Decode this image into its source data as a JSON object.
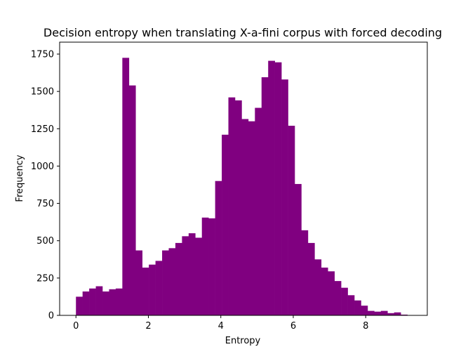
{
  "chart_data": {
    "type": "bar",
    "title": "Decision entropy when translating X-a-fini corpus with forced decoding",
    "xlabel": "Entropy",
    "ylabel": "Frequency",
    "xlim": [
      -0.45,
      9.7
    ],
    "ylim": [
      0,
      1830
    ],
    "x_ticks": [
      0,
      2,
      4,
      6,
      8
    ],
    "x_tick_labels": [
      "0",
      "2",
      "4",
      "6",
      "8"
    ],
    "y_ticks": [
      0,
      250,
      500,
      750,
      1000,
      1250,
      1500,
      1750
    ],
    "y_tick_labels": [
      "0",
      "250",
      "500",
      "750",
      "1000",
      "1250",
      "1500",
      "1750"
    ],
    "grid": false,
    "color": "#800080",
    "bin_start": 0,
    "bin_width": 0.183,
    "values": [
      125,
      160,
      180,
      195,
      160,
      175,
      180,
      1725,
      1540,
      435,
      320,
      340,
      365,
      435,
      450,
      485,
      530,
      550,
      520,
      655,
      650,
      900,
      1210,
      1460,
      1440,
      1315,
      1300,
      1390,
      1595,
      1705,
      1695,
      1580,
      1270,
      880,
      570,
      485,
      375,
      320,
      295,
      230,
      185,
      135,
      100,
      65,
      30,
      25,
      30,
      15,
      20,
      5
    ]
  }
}
